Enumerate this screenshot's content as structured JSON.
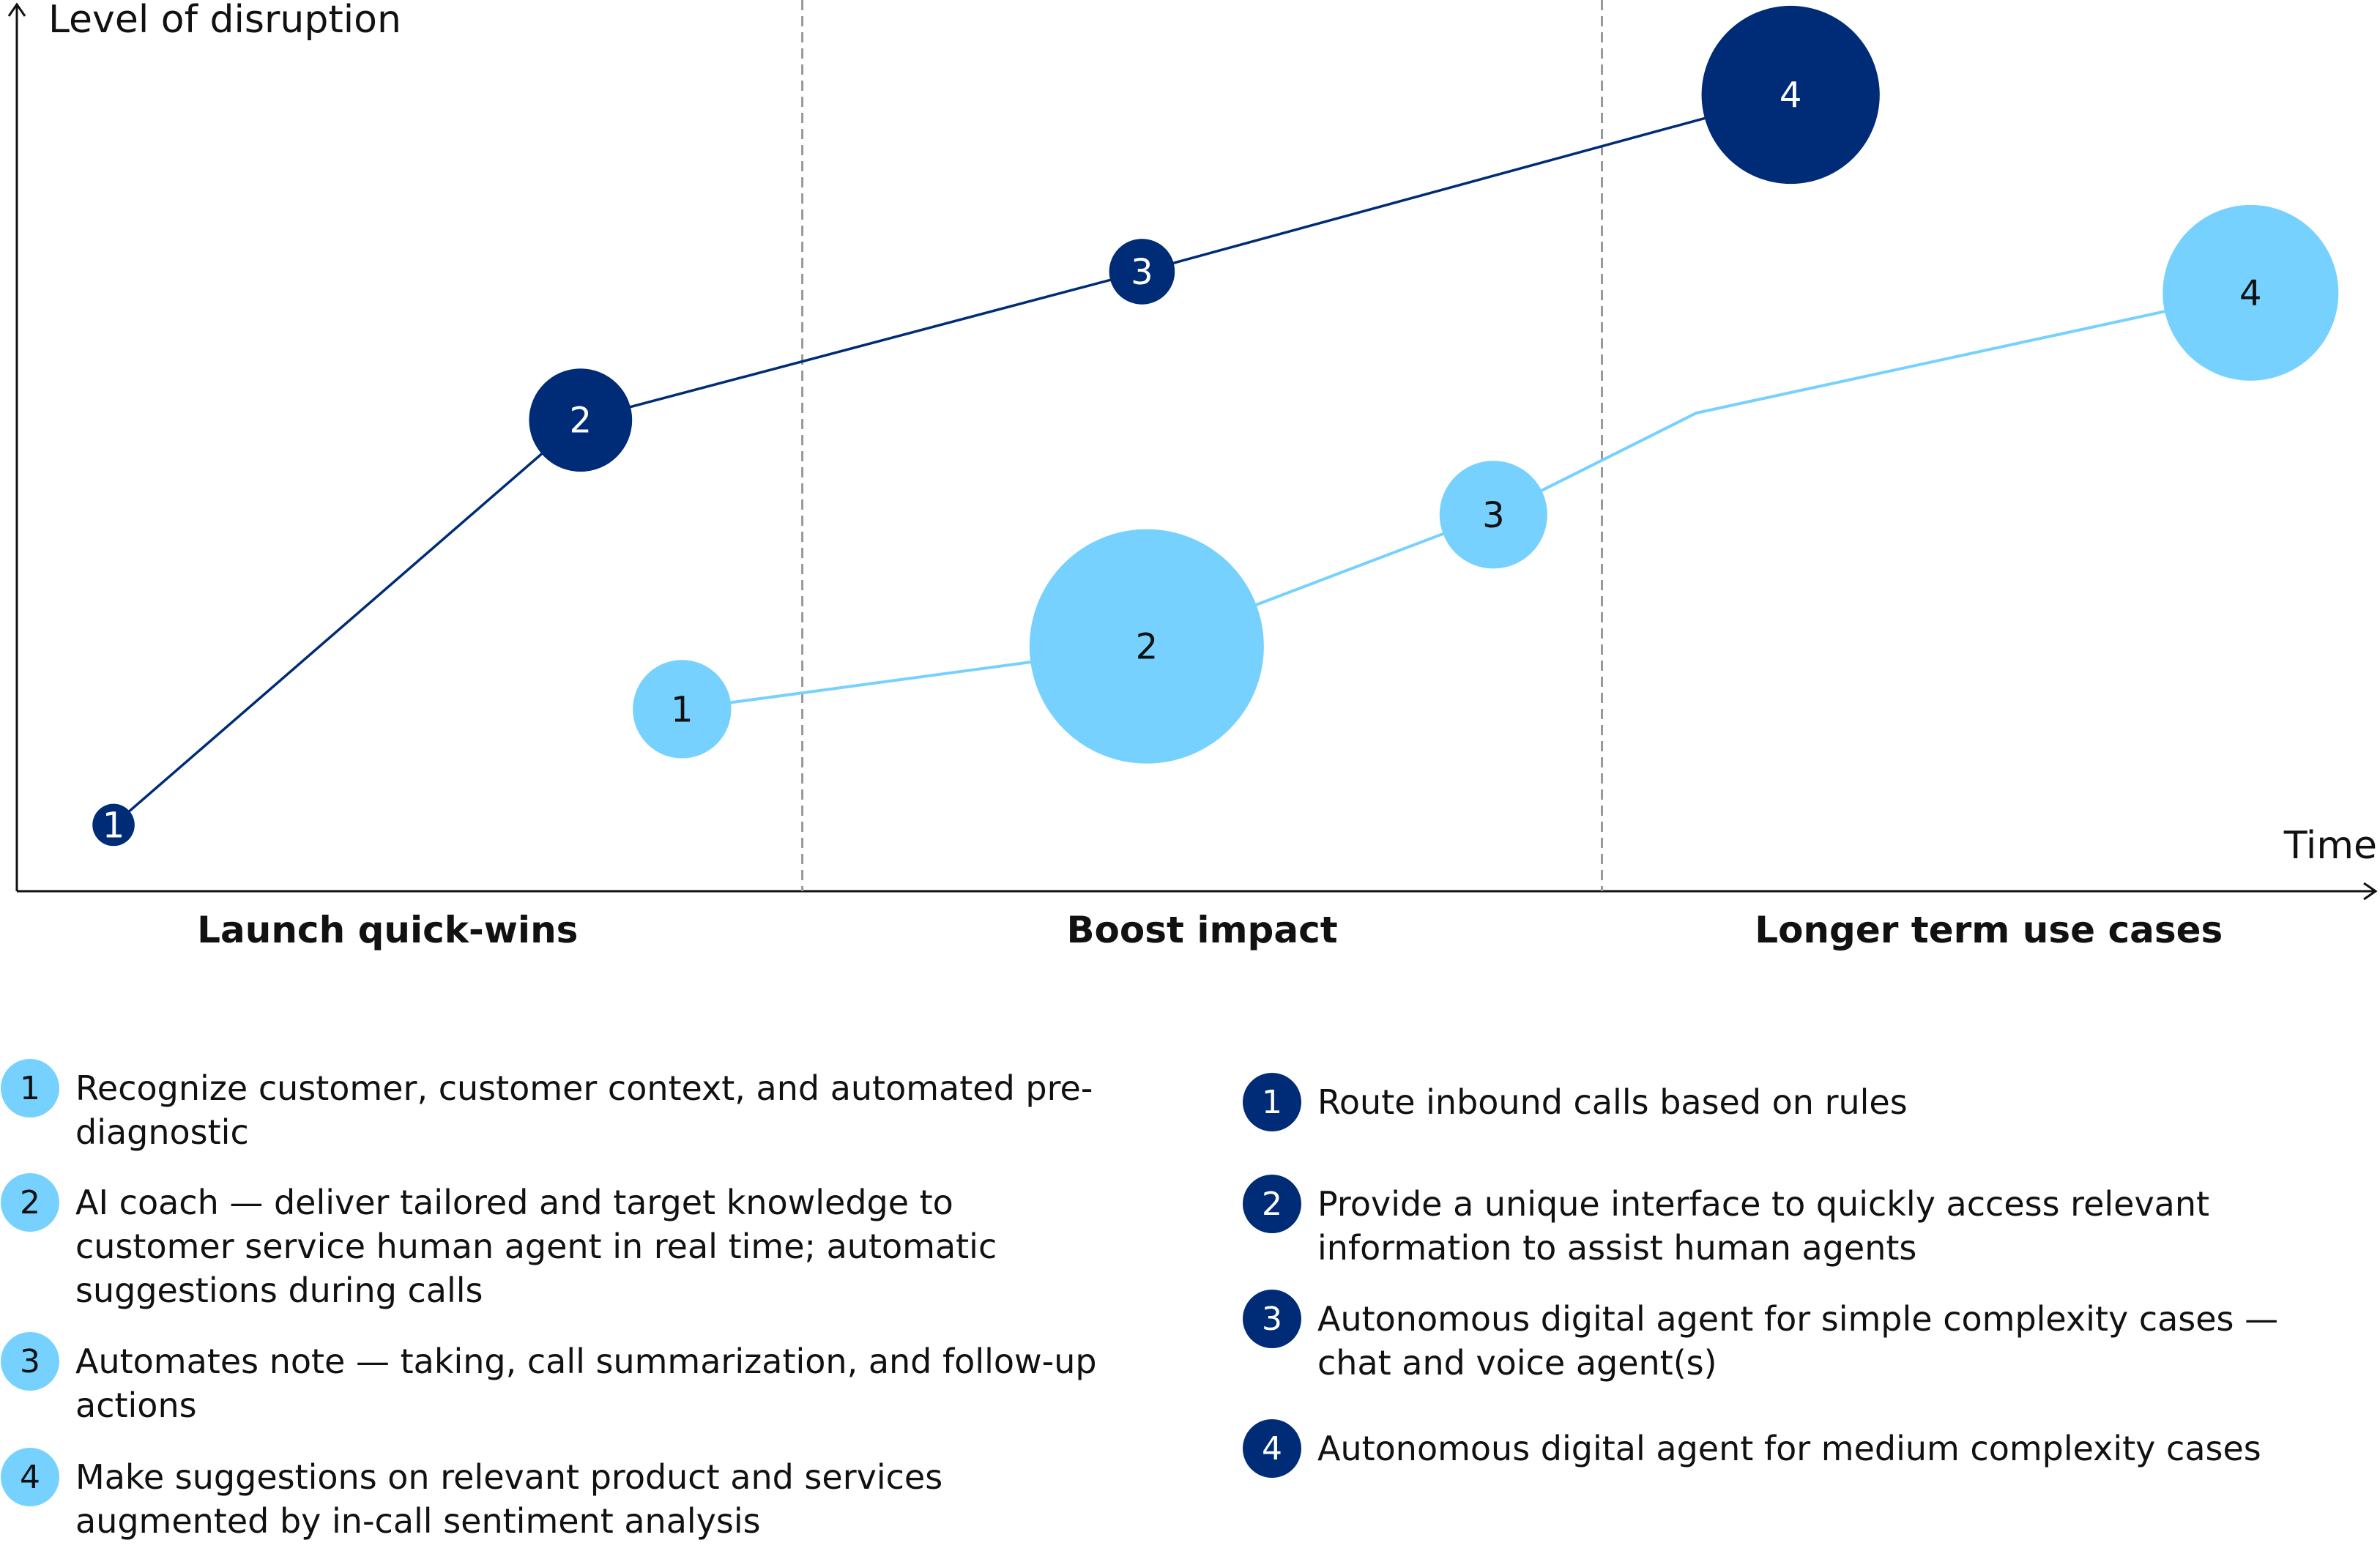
{
  "chart_data": {
    "type": "scatter",
    "ylabel": "Level of disruption",
    "xlabel": "Time",
    "xlim": [
      0,
      100
    ],
    "ylim": [
      0,
      100
    ],
    "grid": false,
    "phases": [
      "Launch quick-wins",
      "Boost impact",
      "Longer term use cases"
    ],
    "phase_boundaries": [
      33.3,
      67.2
    ],
    "series": [
      {
        "color": "#002c77",
        "label_color": "#ffffff",
        "points": [
          {
            "label": "1",
            "x": 4.1,
            "y": 7.5,
            "size": 1.8
          },
          {
            "label": "2",
            "x": 23.9,
            "y": 53.3,
            "size": 4.4
          },
          {
            "label": "3",
            "x": 47.7,
            "y": 70.1,
            "size": 2.8
          },
          {
            "label": "4",
            "x": 75.2,
            "y": 90.1,
            "size": 7.6
          }
        ]
      },
      {
        "color": "#76d1ff",
        "label_color": "#111111",
        "points": [
          {
            "label": "1",
            "x": 28.2,
            "y": 20.6,
            "size": 4.2
          },
          {
            "label": "2",
            "x": 47.9,
            "y": 27.7,
            "size": 10
          },
          {
            "label": "3",
            "x": 62.6,
            "y": 42.6,
            "size": 4.6
          },
          {
            "label": "",
            "x": 71.2,
            "y": 54.1,
            "size": 0
          },
          {
            "label": "4",
            "x": 94.7,
            "y": 67.7,
            "size": 7.5
          }
        ]
      }
    ]
  },
  "legend": {
    "light": [
      {
        "num": "1",
        "text": "Recognize customer, customer context, and automated pre-diagnostic"
      },
      {
        "num": "2",
        "text": "AI coach — deliver tailored and target knowledge to customer service human agent in real time; automatic suggestions during calls"
      },
      {
        "num": "3",
        "text": "Automates note — taking, call summarization, and follow-up actions"
      },
      {
        "num": "4",
        "text": "Make suggestions on relevant product and services augmented by in-call sentiment analysis"
      }
    ],
    "dark": [
      {
        "num": "1",
        "text": "Route inbound calls based on rules"
      },
      {
        "num": "2",
        "text": "Provide a unique interface to quickly access relevant information to assist human agents"
      },
      {
        "num": "3",
        "text": "Autonomous digital agent for simple complexity cases — chat and voice agent(s)"
      },
      {
        "num": "4",
        "text": "Autonomous digital agent for medium complexity cases"
      }
    ]
  }
}
